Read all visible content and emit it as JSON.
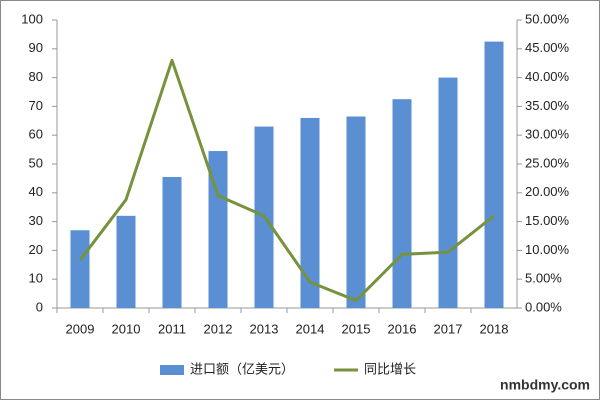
{
  "chart_data": {
    "type": "bar",
    "categories": [
      "2009",
      "2010",
      "2011",
      "2012",
      "2013",
      "2014",
      "2015",
      "2016",
      "2017",
      "2018"
    ],
    "series": [
      {
        "name": "进口额（亿美元）",
        "type": "bar",
        "color": "#5b8fd4",
        "values": [
          27,
          32,
          45.5,
          54.5,
          63,
          66,
          66.5,
          72.5,
          80,
          92.5
        ]
      },
      {
        "name": "同比增长",
        "type": "line",
        "axis": "y2",
        "color": "#76923c",
        "values": [
          8.3,
          18.8,
          43,
          19.5,
          16,
          4.5,
          1.3,
          9.3,
          9.7,
          16
        ]
      }
    ],
    "ylim": [
      0,
      100
    ],
    "yticks": [
      0,
      10,
      20,
      30,
      40,
      50,
      60,
      70,
      80,
      90,
      100
    ],
    "y2lim": [
      0,
      50
    ],
    "y2ticks": [
      {
        "value": 0,
        "label": "0.00%"
      },
      {
        "value": 5,
        "label": "5.00%"
      },
      {
        "value": 10,
        "label": "10.00%"
      },
      {
        "value": 15,
        "label": "15.00%"
      },
      {
        "value": 20,
        "label": "20.00%"
      },
      {
        "value": 25,
        "label": "25.00%"
      },
      {
        "value": 30,
        "label": "30.00%"
      },
      {
        "value": 35,
        "label": "35.00%"
      },
      {
        "value": 40,
        "label": "40.00%"
      },
      {
        "value": 45,
        "label": "45.00%"
      },
      {
        "value": 50,
        "label": "50.00%"
      }
    ],
    "legend": "bottom",
    "watermark": "nmbdmy.com"
  }
}
